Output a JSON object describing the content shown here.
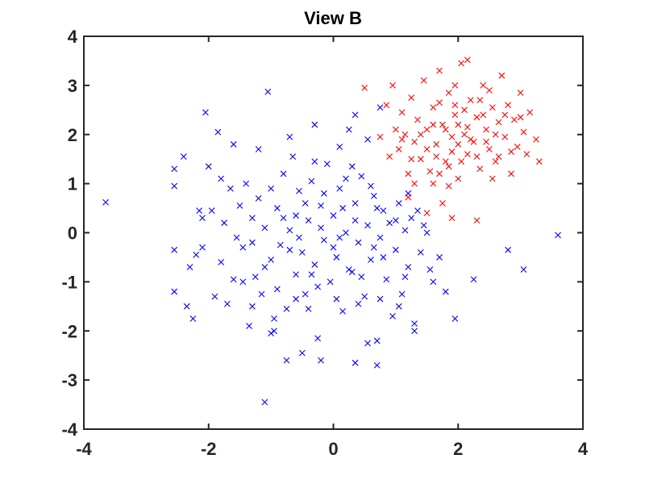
{
  "chart_data": {
    "type": "scatter",
    "title": "View B",
    "xlabel": "",
    "ylabel": "",
    "xlim": [
      -4,
      4
    ],
    "ylim": [
      -4,
      4
    ],
    "xticks": [
      -4,
      -2,
      0,
      2,
      4
    ],
    "yticks": [
      -4,
      -3,
      -2,
      -1,
      0,
      1,
      2,
      3,
      4
    ],
    "grid": false,
    "legend": false,
    "marker": "x",
    "series": [
      {
        "color": "#0000ff",
        "points": [
          [
            -3.65,
            0.62
          ],
          [
            -2.55,
            1.3
          ],
          [
            -2.55,
            0.95
          ],
          [
            -2.55,
            -0.35
          ],
          [
            -2.55,
            -1.2
          ],
          [
            -2.4,
            1.55
          ],
          [
            -2.35,
            -1.5
          ],
          [
            -2.3,
            -0.7
          ],
          [
            -2.25,
            -1.75
          ],
          [
            -2.2,
            -0.45
          ],
          [
            -2.15,
            0.45
          ],
          [
            -2.1,
            0.3
          ],
          [
            -2.05,
            2.45
          ],
          [
            -2.0,
            1.35
          ],
          [
            -1.95,
            0.45
          ],
          [
            -1.9,
            -1.3
          ],
          [
            -1.85,
            2.05
          ],
          [
            -1.8,
            -0.6
          ],
          [
            -1.75,
            0.2
          ],
          [
            -1.7,
            -1.45
          ],
          [
            -1.65,
            0.9
          ],
          [
            -1.6,
            1.8
          ],
          [
            -1.55,
            -0.1
          ],
          [
            -1.5,
            0.55
          ],
          [
            -1.45,
            -0.3
          ],
          [
            -1.4,
            1.0
          ],
          [
            -1.35,
            -1.9
          ],
          [
            -1.3,
            0.3
          ],
          [
            -1.25,
            -0.9
          ],
          [
            -1.2,
            0.7
          ],
          [
            -1.15,
            -1.25
          ],
          [
            -1.1,
            0.1
          ],
          [
            -1.05,
            2.87
          ],
          [
            -1.0,
            -0.55
          ],
          [
            -0.95,
            -2.0
          ],
          [
            -0.9,
            0.5
          ],
          [
            -0.85,
            -0.25
          ],
          [
            -0.8,
            1.2
          ],
          [
            -0.75,
            -1.55
          ],
          [
            -0.7,
            0.05
          ],
          [
            -0.65,
            1.55
          ],
          [
            -0.6,
            -0.85
          ],
          [
            -0.55,
            0.85
          ],
          [
            -0.5,
            -0.4
          ],
          [
            -0.45,
            -1.25
          ],
          [
            -0.4,
            0.25
          ],
          [
            -0.35,
            1.05
          ],
          [
            -0.3,
            -0.65
          ],
          [
            -0.25,
            -2.15
          ],
          [
            -0.2,
            0.55
          ],
          [
            -0.15,
            -0.15
          ],
          [
            -0.1,
            1.4
          ],
          [
            -0.05,
            -1.0
          ],
          [
            0.0,
            0.35
          ],
          [
            0.05,
            -0.5
          ],
          [
            0.1,
            0.9
          ],
          [
            0.15,
            -1.6
          ],
          [
            0.2,
            0.0
          ],
          [
            0.25,
            2.1
          ],
          [
            0.3,
            -0.8
          ],
          [
            0.35,
            0.6
          ],
          [
            0.4,
            -0.2
          ],
          [
            0.45,
            1.15
          ],
          [
            0.5,
            -1.3
          ],
          [
            0.55,
            0.15
          ],
          [
            0.6,
            -0.55
          ],
          [
            0.65,
            0.75
          ],
          [
            0.7,
            -2.2
          ],
          [
            0.75,
            -0.1
          ],
          [
            0.8,
            0.45
          ],
          [
            0.85,
            -0.95
          ],
          [
            0.9,
            0.2
          ],
          [
            0.95,
            -1.7
          ],
          [
            1.0,
            -0.35
          ],
          [
            1.05,
            0.6
          ],
          [
            1.1,
            -1.25
          ],
          [
            1.15,
            0.05
          ],
          [
            1.2,
            -0.7
          ],
          [
            1.25,
            0.3
          ],
          [
            1.3,
            -1.85
          ],
          [
            1.4,
            -0.4
          ],
          [
            1.5,
            0.0
          ],
          [
            1.6,
            -1.0
          ],
          [
            1.7,
            -0.5
          ],
          [
            1.8,
            -1.2
          ],
          [
            1.95,
            -1.75
          ],
          [
            2.25,
            -0.95
          ],
          [
            2.8,
            -0.35
          ],
          [
            3.05,
            -0.75
          ],
          [
            3.6,
            -0.05
          ],
          [
            -1.1,
            -3.45
          ],
          [
            -1.0,
            -2.05
          ],
          [
            -0.75,
            -2.6
          ],
          [
            -0.5,
            -2.45
          ],
          [
            -0.2,
            -2.6
          ],
          [
            0.35,
            -2.65
          ],
          [
            0.55,
            -2.25
          ],
          [
            0.7,
            -2.7
          ],
          [
            1.3,
            -2.0
          ],
          [
            -1.45,
            -1.0
          ],
          [
            -1.3,
            -0.2
          ],
          [
            -1.1,
            -0.7
          ],
          [
            -0.9,
            -1.15
          ],
          [
            -0.7,
            -0.35
          ],
          [
            -0.6,
            0.35
          ],
          [
            -0.4,
            -1.55
          ],
          [
            -0.3,
            1.45
          ],
          [
            -0.15,
            0.8
          ],
          [
            0.0,
            -0.3
          ],
          [
            0.15,
            0.5
          ],
          [
            0.3,
            1.35
          ],
          [
            0.45,
            -0.9
          ],
          [
            0.6,
            0.95
          ],
          [
            0.8,
            -0.5
          ],
          [
            1.0,
            0.25
          ],
          [
            1.15,
            -0.9
          ],
          [
            1.35,
            0.45
          ],
          [
            1.55,
            -0.75
          ],
          [
            -1.8,
            1.1
          ],
          [
            -1.2,
            1.7
          ],
          [
            -0.7,
            1.95
          ],
          [
            -0.3,
            2.2
          ],
          [
            0.1,
            1.75
          ],
          [
            0.35,
            2.4
          ],
          [
            0.55,
            1.9
          ],
          [
            0.75,
            2.55
          ],
          [
            -2.1,
            -0.3
          ],
          [
            -1.6,
            -0.95
          ],
          [
            -1.3,
            -1.5
          ],
          [
            -0.95,
            -1.75
          ],
          [
            -0.6,
            -1.35
          ],
          [
            -0.25,
            -1.1
          ],
          [
            0.05,
            -1.35
          ],
          [
            0.4,
            -1.45
          ],
          [
            0.75,
            -1.35
          ],
          [
            1.05,
            -1.5
          ],
          [
            -0.8,
            0.3
          ],
          [
            -0.55,
            -0.1
          ],
          [
            -0.2,
            0.1
          ],
          [
            0.1,
            -0.1
          ],
          [
            0.35,
            0.25
          ],
          [
            0.65,
            -0.3
          ],
          [
            -1.0,
            0.9
          ],
          [
            -0.45,
            0.6
          ],
          [
            0.2,
            1.1
          ],
          [
            0.7,
            0.5
          ],
          [
            1.2,
            0.8
          ],
          [
            1.45,
            0.15
          ],
          [
            -0.35,
            -0.85
          ],
          [
            0.25,
            -0.75
          ]
        ]
      },
      {
        "color": "#ff0000",
        "points": [
          [
            0.5,
            2.95
          ],
          [
            0.75,
            1.95
          ],
          [
            0.85,
            2.6
          ],
          [
            0.9,
            1.55
          ],
          [
            0.95,
            3.0
          ],
          [
            1.0,
            2.1
          ],
          [
            1.05,
            1.7
          ],
          [
            1.1,
            2.45
          ],
          [
            1.15,
            2.0
          ],
          [
            1.2,
            1.2
          ],
          [
            1.25,
            2.75
          ],
          [
            1.3,
            1.85
          ],
          [
            1.35,
            2.3
          ],
          [
            1.4,
            1.5
          ],
          [
            1.45,
            3.1
          ],
          [
            1.5,
            2.1
          ],
          [
            1.55,
            1.25
          ],
          [
            1.6,
            2.55
          ],
          [
            1.65,
            1.8
          ],
          [
            1.7,
            3.3
          ],
          [
            1.75,
            2.2
          ],
          [
            1.8,
            1.45
          ],
          [
            1.85,
            2.85
          ],
          [
            1.9,
            1.95
          ],
          [
            1.95,
            2.4
          ],
          [
            2.0,
            1.1
          ],
          [
            2.05,
            3.45
          ],
          [
            2.1,
            2.0
          ],
          [
            2.15,
            1.6
          ],
          [
            2.2,
            2.7
          ],
          [
            2.25,
            1.85
          ],
          [
            2.3,
            2.35
          ],
          [
            2.35,
            1.3
          ],
          [
            2.4,
            3.0
          ],
          [
            2.45,
            2.1
          ],
          [
            2.5,
            1.7
          ],
          [
            2.55,
            2.55
          ],
          [
            2.6,
            1.45
          ],
          [
            2.65,
            2.25
          ],
          [
            2.7,
            3.2
          ],
          [
            2.75,
            1.95
          ],
          [
            2.8,
            2.6
          ],
          [
            2.85,
            1.2
          ],
          [
            2.9,
            2.3
          ],
          [
            2.95,
            1.75
          ],
          [
            3.0,
            2.85
          ],
          [
            3.05,
            2.05
          ],
          [
            3.1,
            1.6
          ],
          [
            3.15,
            2.45
          ],
          [
            3.25,
            1.9
          ],
          [
            3.3,
            1.45
          ],
          [
            2.15,
            3.52
          ],
          [
            1.95,
            3.0
          ],
          [
            1.6,
            1.0
          ],
          [
            1.85,
            0.95
          ],
          [
            1.3,
            1.0
          ],
          [
            1.75,
            0.6
          ],
          [
            1.9,
            0.3
          ],
          [
            2.3,
            0.25
          ],
          [
            1.5,
            0.4
          ],
          [
            1.2,
            0.72
          ],
          [
            1.7,
            1.2
          ],
          [
            1.9,
            1.65
          ],
          [
            2.0,
            2.2
          ],
          [
            2.1,
            2.5
          ],
          [
            2.2,
            1.9
          ],
          [
            1.8,
            2.1
          ],
          [
            2.0,
            1.8
          ],
          [
            2.4,
            2.4
          ],
          [
            2.6,
            2.0
          ],
          [
            1.6,
            2.2
          ],
          [
            2.3,
            1.55
          ],
          [
            1.4,
            2.0
          ],
          [
            2.75,
            2.4
          ],
          [
            1.95,
            2.6
          ],
          [
            2.15,
            2.15
          ],
          [
            2.5,
            2.9
          ],
          [
            1.7,
            2.65
          ],
          [
            1.5,
            1.7
          ],
          [
            2.85,
            1.65
          ],
          [
            1.25,
            1.5
          ],
          [
            2.55,
            1.1
          ],
          [
            3.0,
            2.35
          ],
          [
            1.1,
            1.9
          ],
          [
            2.35,
            2.7
          ],
          [
            1.85,
            1.35
          ],
          [
            2.65,
            1.55
          ],
          [
            2.05,
            1.45
          ],
          [
            1.65,
            1.55
          ],
          [
            2.45,
            1.85
          ]
        ]
      }
    ]
  }
}
